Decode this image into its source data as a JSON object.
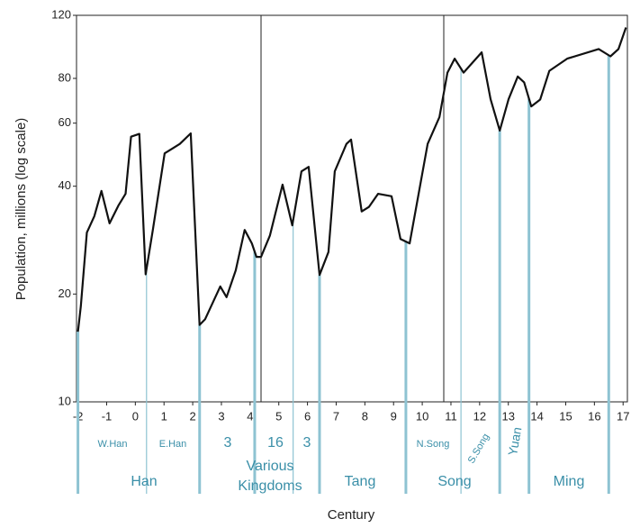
{
  "chart_data": {
    "type": "line",
    "x_label": "Century",
    "y_label": "Population, millions (log scale)",
    "log_scale": true,
    "ylim": [
      10,
      120
    ],
    "yticks": [
      10,
      20,
      40,
      60,
      80,
      120
    ],
    "xlim": [
      -2.05,
      17.15
    ],
    "xticks": [
      -2,
      -1,
      0,
      1,
      2,
      3,
      4,
      5,
      6,
      7,
      8,
      9,
      10,
      11,
      12,
      13,
      14,
      15,
      16,
      17
    ],
    "series": [
      {
        "color": "#111111",
        "x": [
          -2,
          -1.9,
          -1.69,
          -1.43,
          -1.18,
          -0.9,
          -0.59,
          -0.34,
          -0.15,
          0.14,
          0.36,
          0.61,
          1.02,
          1.3,
          1.55,
          1.93,
          2.24,
          2.43,
          2.96,
          3.18,
          3.5,
          3.81,
          4.06,
          4.22,
          4.38,
          4.69,
          5.13,
          5.47,
          5.79,
          6.04,
          6.42,
          6.73,
          6.95,
          7.36,
          7.52,
          7.89,
          8.14,
          8.46,
          8.93,
          9.24,
          9.56,
          10.19,
          10.6,
          10.88,
          11.13,
          11.44,
          12.07,
          12.38,
          12.7,
          13.01,
          13.33,
          13.55,
          13.8,
          14.11,
          14.43,
          15.05,
          16.15,
          16.56,
          16.84,
          17.1
        ],
        "values": [
          15.7,
          18.5,
          29.7,
          33,
          38.8,
          31.5,
          35.3,
          38.1,
          55,
          56,
          22.7,
          30.2,
          49.4,
          51,
          52.5,
          56.2,
          16.4,
          17,
          21,
          19.6,
          23.3,
          30.2,
          27.7,
          25.4,
          25.4,
          29.1,
          40.4,
          31.1,
          44,
          45.3,
          22.6,
          26.2,
          44,
          52.5,
          54,
          34,
          35,
          38.1,
          37.5,
          28.5,
          27.7,
          52.5,
          62.4,
          83,
          90.8,
          83,
          94.6,
          70,
          57.2,
          70,
          81,
          78,
          66.8,
          69.8,
          84,
          90.8,
          96.6,
          92.2,
          96.6,
          111
        ]
      }
    ],
    "annotations": [
      "W.Han",
      "E.Han",
      "3",
      "16",
      "3",
      "N.Song",
      "S.Song",
      "Yuan",
      "Han",
      "Various",
      "Kingdoms",
      "Tang",
      "Song",
      "Ming"
    ]
  }
}
